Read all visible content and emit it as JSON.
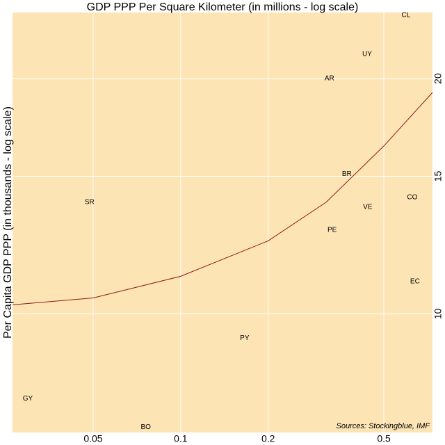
{
  "chart_data": {
    "type": "scatter",
    "title": "GDP PPP Per Square Kilometer (in millions - log scale)",
    "y_label": "Per Capita GDP PPP (in thousands - log scale)",
    "source": "Sources: Stockingblue, IMF",
    "labels": [
      "CL",
      "UY",
      "AR",
      "BR",
      "SR",
      "CO",
      "VE",
      "PE",
      "EC",
      "PY",
      "GY",
      "BO"
    ],
    "x": [
      0.596,
      0.438,
      0.325,
      0.373,
      0.0486,
      0.626,
      0.44,
      0.332,
      0.64,
      0.166,
      0.0298,
      0.0759
    ],
    "y": [
      24.1,
      21.5,
      20.0,
      15.1,
      13.9,
      14.1,
      13.7,
      12.8,
      11.0,
      9.31,
      7.79,
      7.16
    ],
    "trend": {
      "color": "#8b1a1a",
      "x": [
        0.0264,
        0.05,
        0.1,
        0.2,
        0.317,
        0.5,
        0.735
      ],
      "y": [
        10.27,
        10.48,
        11.17,
        12.4,
        13.9,
        16.4,
        19.2
      ]
    },
    "xlim": [
      0.0264,
      0.735
    ],
    "ylim": [
      7.05,
      24.3
    ],
    "xticks": [
      0.05,
      0.1,
      0.2,
      0.5
    ],
    "yticks": [
      10,
      15,
      20
    ],
    "xlog": true,
    "ylog": true,
    "grid": true,
    "background": "#fde4b5"
  }
}
